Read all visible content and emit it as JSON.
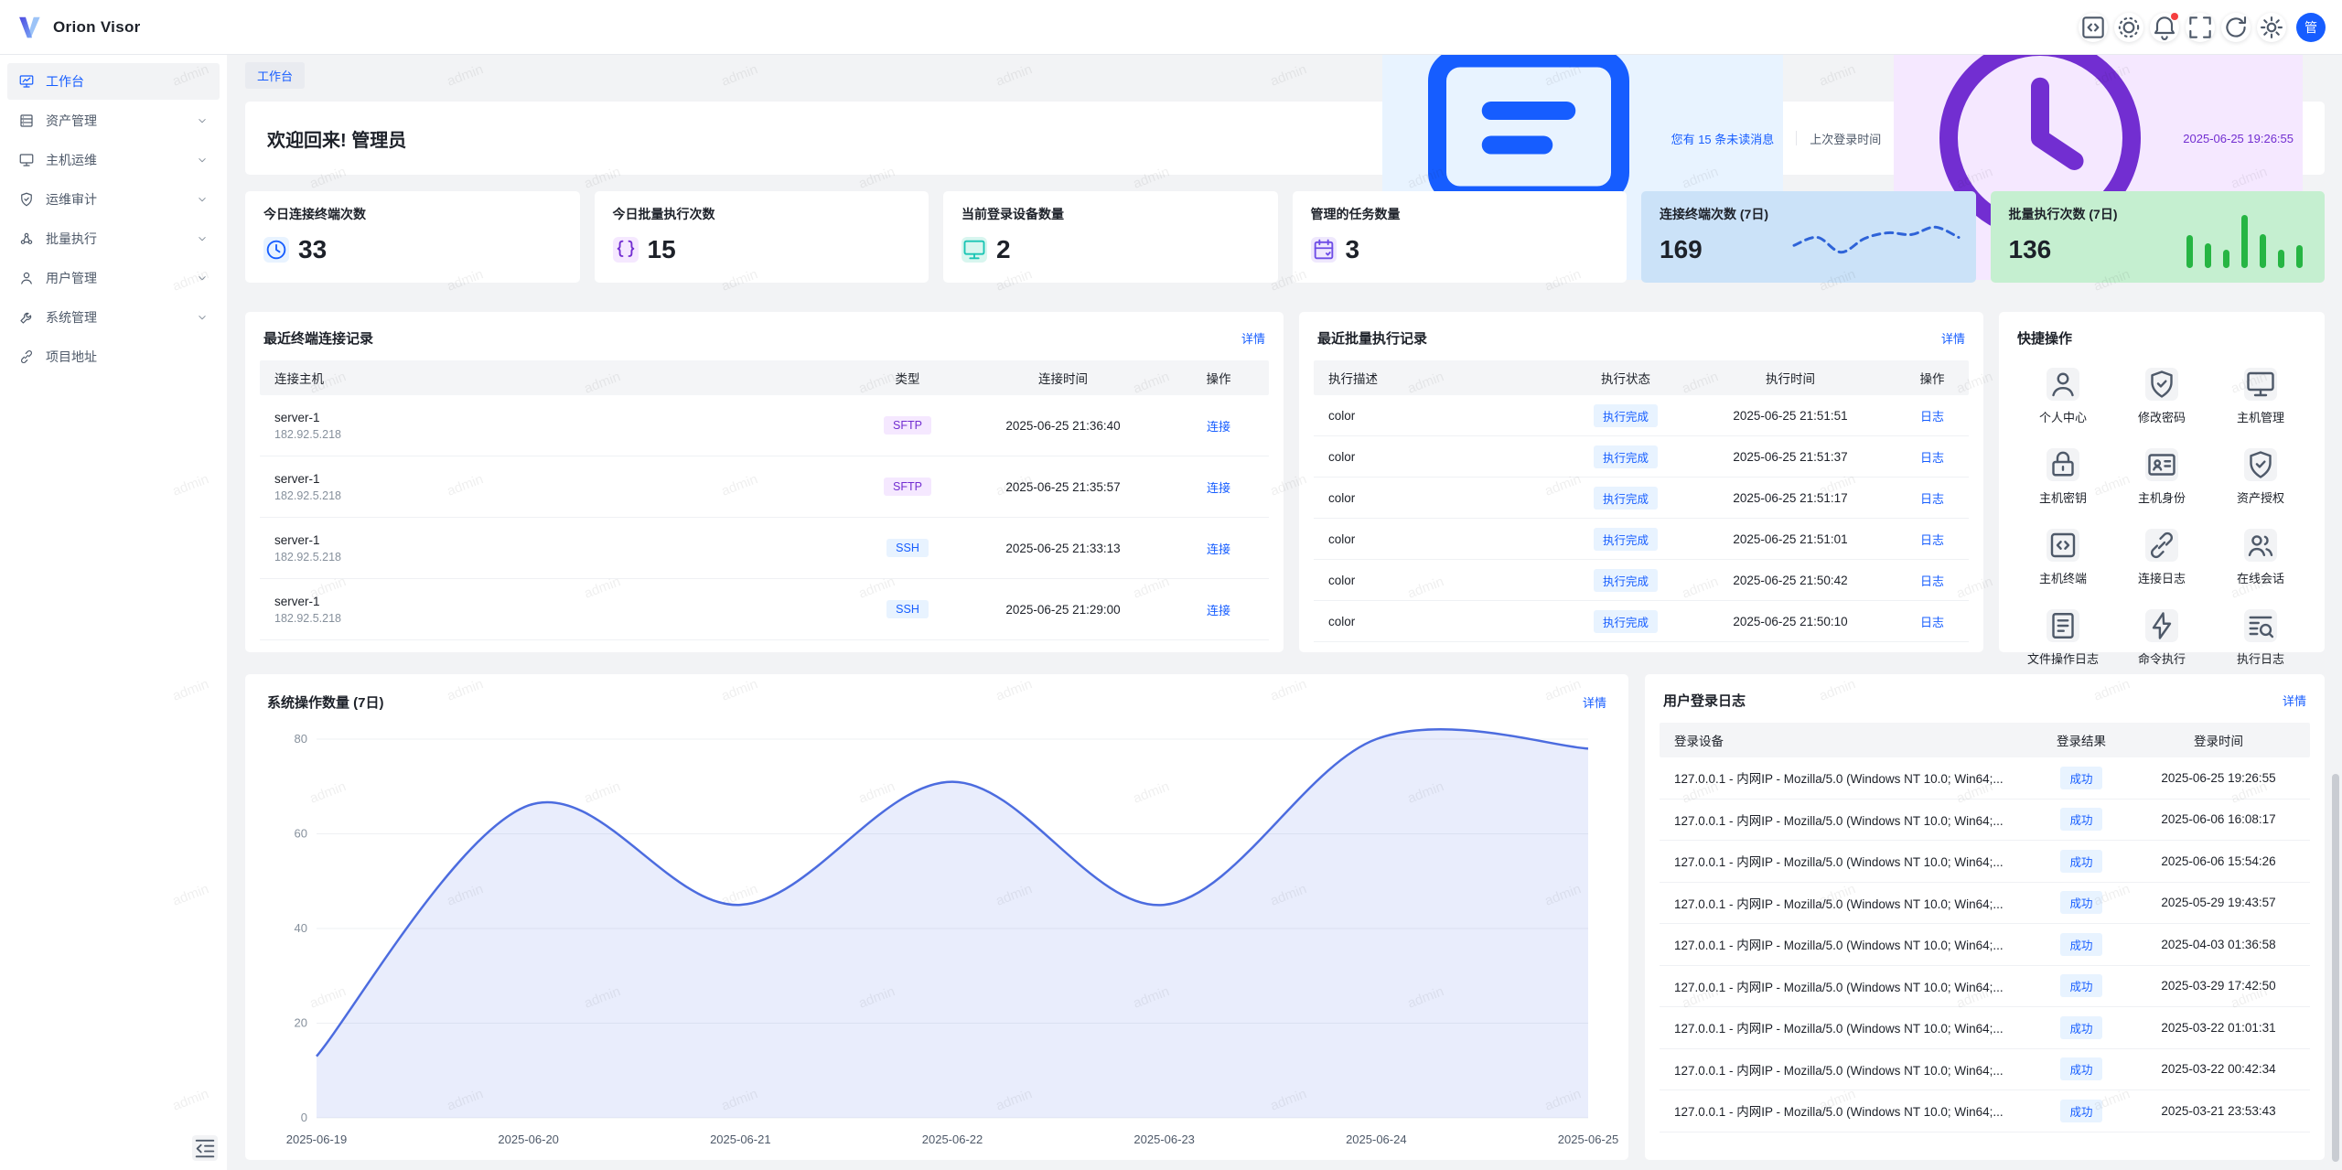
{
  "app": {
    "name": "Orion Visor",
    "avatar": "管"
  },
  "sidebar": {
    "items": [
      {
        "label": "工作台",
        "icon": "workbench",
        "state": "active",
        "chevron": false
      },
      {
        "label": "资产管理",
        "icon": "asset",
        "state": "",
        "chevron": true
      },
      {
        "label": "主机运维",
        "icon": "host",
        "state": "",
        "chevron": true
      },
      {
        "label": "运维审计",
        "icon": "audit",
        "state": "",
        "chevron": true
      },
      {
        "label": "批量执行",
        "icon": "batch",
        "state": "",
        "chevron": true
      },
      {
        "label": "用户管理",
        "icon": "user",
        "state": "",
        "chevron": true
      },
      {
        "label": "系统管理",
        "icon": "system",
        "state": "",
        "chevron": true
      },
      {
        "label": "项目地址",
        "icon": "link",
        "state": "",
        "chevron": false
      }
    ]
  },
  "breadcrumb": {
    "label": "工作台"
  },
  "welcome": {
    "title": "欢迎回来! 管理员",
    "unread": "您有 15 条未读消息",
    "last_login_label": "上次登录时间",
    "last_login_time": "2025-06-25 19:26:55"
  },
  "stats": {
    "cards": [
      {
        "title": "今日连接终端次数",
        "value": "33",
        "icon": "clock",
        "icon_color": "#165dff",
        "icon_bg": "#e8f3ff"
      },
      {
        "title": "今日批量执行次数",
        "value": "15",
        "icon": "braces",
        "icon_color": "#722ed1",
        "icon_bg": "#f5e8ff"
      },
      {
        "title": "当前登录设备数量",
        "value": "2",
        "icon": "monitor",
        "icon_color": "#1ac5b4",
        "icon_bg": "#d8f6ef"
      },
      {
        "title": "管理的任务数量",
        "value": "3",
        "icon": "task",
        "icon_color": "#6e4de6",
        "icon_bg": "#efe8fd"
      }
    ]
  },
  "chart_data": [
    {
      "type": "area",
      "title": "系统操作数量 (7日)",
      "detail_link": "详情",
      "x": [
        "2025-06-19",
        "2025-06-20",
        "2025-06-21",
        "2025-06-22",
        "2025-06-23",
        "2025-06-24",
        "2025-06-25"
      ],
      "series": [
        {
          "name": "系统操作数量",
          "values": [
            13,
            66,
            45,
            71,
            45,
            80,
            78
          ]
        }
      ],
      "ylim": [
        0,
        80
      ],
      "yticks": [
        0,
        20,
        40,
        60,
        80
      ],
      "grid": true,
      "legend": false,
      "line_color": "#4c6cdf",
      "fill_color": "rgba(86,113,229,0.13)"
    },
    {
      "type": "line",
      "title": "连接终端次数 (7日)",
      "total": "169",
      "values": [
        38,
        52,
        26,
        50,
        60,
        57,
        70,
        52
      ],
      "style": "dashed",
      "line_color": "#2e63d8",
      "card_bg": "#cbe2f8"
    },
    {
      "type": "bar",
      "title": "批量执行次数 (7日)",
      "total": "136",
      "values": [
        62,
        47,
        35,
        100,
        64,
        35,
        43
      ],
      "bar_color": "#26b543",
      "card_bg": "#c5efd0"
    }
  ],
  "terminal_records": {
    "title": "最近终端连接记录",
    "detail_link": "详情",
    "columns": [
      "连接主机",
      "类型",
      "连接时间",
      "操作"
    ],
    "rows": [
      {
        "host": "server-1",
        "ip": "182.92.5.218",
        "type": "SFTP",
        "type_class": "tag-purple",
        "time": "2025-06-25 21:36:40",
        "action": "连接"
      },
      {
        "host": "server-1",
        "ip": "182.92.5.218",
        "type": "SFTP",
        "type_class": "tag-purple",
        "time": "2025-06-25 21:35:57",
        "action": "连接"
      },
      {
        "host": "server-1",
        "ip": "182.92.5.218",
        "type": "SSH",
        "type_class": "tag-blue",
        "time": "2025-06-25 21:33:13",
        "action": "连接"
      },
      {
        "host": "server-1",
        "ip": "182.92.5.218",
        "type": "SSH",
        "type_class": "tag-blue",
        "time": "2025-06-25 21:29:00",
        "action": "连接"
      }
    ]
  },
  "batch_records": {
    "title": "最近批量执行记录",
    "detail_link": "详情",
    "columns": [
      "执行描述",
      "执行状态",
      "执行时间",
      "操作"
    ],
    "rows": [
      {
        "desc": "color",
        "status": "执行完成",
        "time": "2025-06-25 21:51:51",
        "action": "日志"
      },
      {
        "desc": "color",
        "status": "执行完成",
        "time": "2025-06-25 21:51:37",
        "action": "日志"
      },
      {
        "desc": "color",
        "status": "执行完成",
        "time": "2025-06-25 21:51:17",
        "action": "日志"
      },
      {
        "desc": "color",
        "status": "执行完成",
        "time": "2025-06-25 21:51:01",
        "action": "日志"
      },
      {
        "desc": "color",
        "status": "执行完成",
        "time": "2025-06-25 21:50:42",
        "action": "日志"
      },
      {
        "desc": "color",
        "status": "执行完成",
        "time": "2025-06-25 21:50:10",
        "action": "日志"
      }
    ]
  },
  "quick_actions": {
    "title": "快捷操作",
    "items": [
      {
        "label": "个人中心",
        "icon": "person"
      },
      {
        "label": "修改密码",
        "icon": "shield-check"
      },
      {
        "label": "主机管理",
        "icon": "monitor"
      },
      {
        "label": "主机密钥",
        "icon": "lock"
      },
      {
        "label": "主机身份",
        "icon": "id-card"
      },
      {
        "label": "资产授权",
        "icon": "shield-check"
      },
      {
        "label": "主机终端",
        "icon": "code-square"
      },
      {
        "label": "连接日志",
        "icon": "link"
      },
      {
        "label": "在线会话",
        "icon": "people"
      },
      {
        "label": "文件操作日志",
        "icon": "file"
      },
      {
        "label": "命令执行",
        "icon": "lightning"
      },
      {
        "label": "执行日志",
        "icon": "search-doc"
      }
    ]
  },
  "login_logs": {
    "title": "用户登录日志",
    "detail_link": "详情",
    "columns": [
      "登录设备",
      "登录结果",
      "登录时间"
    ],
    "rows": [
      {
        "device": "127.0.0.1 - 内网IP - Mozilla/5.0 (Windows NT 10.0; Win64;...",
        "result": "成功",
        "time": "2025-06-25 19:26:55"
      },
      {
        "device": "127.0.0.1 - 内网IP - Mozilla/5.0 (Windows NT 10.0; Win64;...",
        "result": "成功",
        "time": "2025-06-06 16:08:17"
      },
      {
        "device": "127.0.0.1 - 内网IP - Mozilla/5.0 (Windows NT 10.0; Win64;...",
        "result": "成功",
        "time": "2025-06-06 15:54:26"
      },
      {
        "device": "127.0.0.1 - 内网IP - Mozilla/5.0 (Windows NT 10.0; Win64;...",
        "result": "成功",
        "time": "2025-05-29 19:43:57"
      },
      {
        "device": "127.0.0.1 - 内网IP - Mozilla/5.0 (Windows NT 10.0; Win64;...",
        "result": "成功",
        "time": "2025-04-03 01:36:58"
      },
      {
        "device": "127.0.0.1 - 内网IP - Mozilla/5.0 (Windows NT 10.0; Win64;...",
        "result": "成功",
        "time": "2025-03-29 17:42:50"
      },
      {
        "device": "127.0.0.1 - 内网IP - Mozilla/5.0 (Windows NT 10.0; Win64;...",
        "result": "成功",
        "time": "2025-03-22 01:01:31"
      },
      {
        "device": "127.0.0.1 - 内网IP - Mozilla/5.0 (Windows NT 10.0; Win64;...",
        "result": "成功",
        "time": "2025-03-22 00:42:34"
      },
      {
        "device": "127.0.0.1 - 内网IP - Mozilla/5.0 (Windows NT 10.0; Win64;...",
        "result": "成功",
        "time": "2025-03-21 23:53:43"
      }
    ]
  },
  "watermark": {
    "text": "admin"
  }
}
